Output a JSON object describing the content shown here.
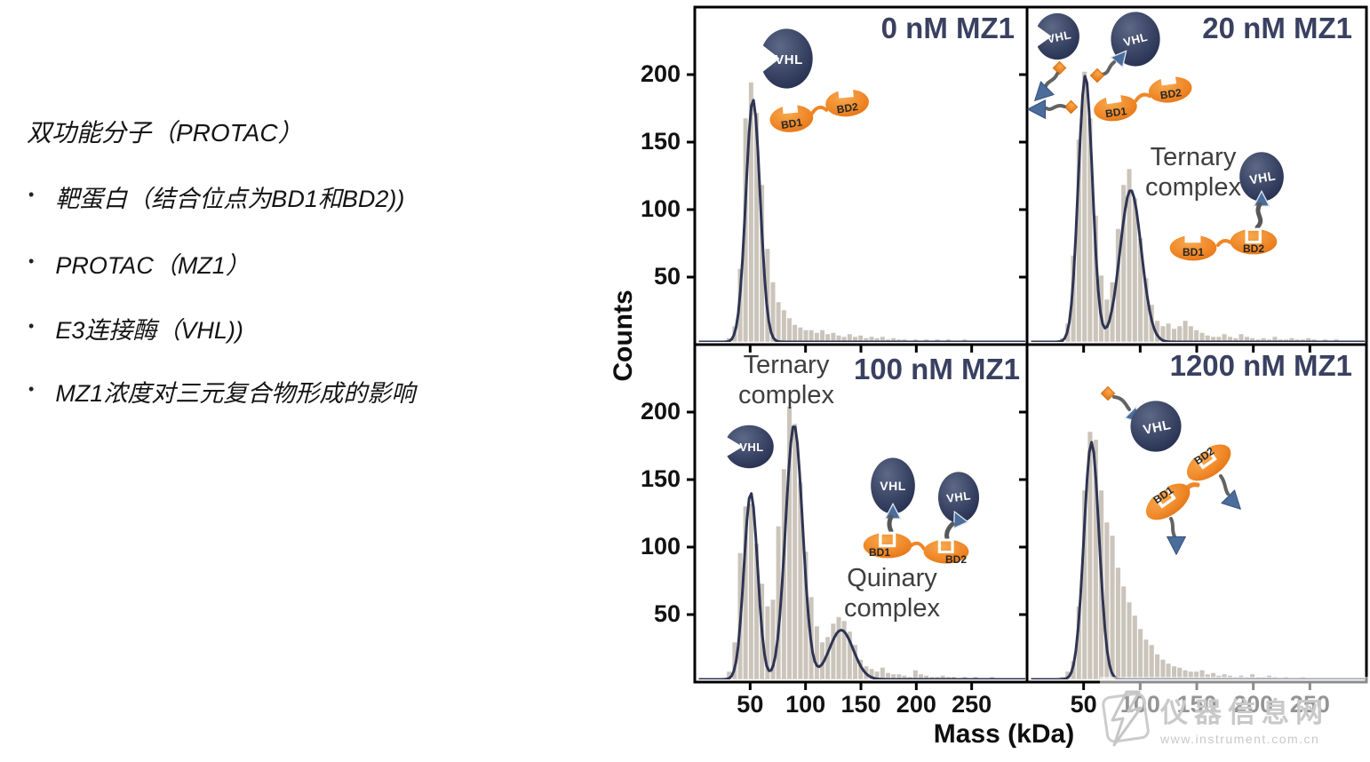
{
  "left_panel": {
    "title": "双功能分子（PROTAC）",
    "bullets": [
      "靶蛋白（结合位点为BD1和BD2))",
      "PROTAC（MZ1）",
      "E3连接酶（VHL))",
      "MZ1浓度对三元复合物形成的影响"
    ]
  },
  "icons": {
    "vhl": "VHL",
    "bd1": "BD1",
    "bd2": "BD2"
  },
  "watermark": {
    "line1": "仪器信息网",
    "line2": "www.instrument.com.cn"
  },
  "chart_data": {
    "type": "bar",
    "subtype": "mass-photometry-histograms",
    "layout": "2x2-shared-axes",
    "xlabel": "Mass (kDa)",
    "ylabel": "Counts",
    "xlim": [
      0,
      300
    ],
    "ylim": [
      0,
      250
    ],
    "xticks": [
      50,
      100,
      150,
      200,
      250
    ],
    "yticks": [
      50,
      100,
      150,
      200
    ],
    "bin_width": 5,
    "grid": false,
    "colors": {
      "bar": "#cac4bb",
      "fit": "#2e3452",
      "axis": "#000000",
      "title": "#3a4060"
    },
    "panels": [
      {
        "id": "0nm",
        "title": "0 nM MZ1",
        "bins": [
          [
            25,
            1
          ],
          [
            30,
            3
          ],
          [
            35,
            12
          ],
          [
            40,
            55
          ],
          [
            45,
            168
          ],
          [
            50,
            195
          ],
          [
            55,
            172
          ],
          [
            60,
            118
          ],
          [
            65,
            70
          ],
          [
            70,
            45
          ],
          [
            75,
            30
          ],
          [
            80,
            24
          ],
          [
            85,
            18
          ],
          [
            90,
            13
          ],
          [
            95,
            11
          ],
          [
            100,
            9
          ],
          [
            105,
            9
          ],
          [
            110,
            7
          ],
          [
            115,
            9
          ],
          [
            120,
            6
          ],
          [
            125,
            7
          ],
          [
            130,
            5
          ],
          [
            135,
            4
          ],
          [
            140,
            6
          ],
          [
            145,
            4
          ],
          [
            150,
            5
          ],
          [
            155,
            3
          ],
          [
            160,
            4
          ],
          [
            165,
            3
          ],
          [
            170,
            4
          ],
          [
            175,
            2
          ],
          [
            180,
            3
          ],
          [
            185,
            2
          ],
          [
            190,
            2
          ],
          [
            195,
            1
          ],
          [
            200,
            2
          ],
          [
            205,
            1
          ],
          [
            210,
            2
          ],
          [
            215,
            1
          ],
          [
            220,
            2
          ],
          [
            225,
            1
          ],
          [
            230,
            2
          ],
          [
            235,
            1
          ],
          [
            240,
            1
          ],
          [
            245,
            2
          ],
          [
            250,
            1
          ],
          [
            255,
            1
          ],
          [
            260,
            1
          ],
          [
            265,
            1
          ],
          [
            270,
            1
          ],
          [
            275,
            1
          ],
          [
            280,
            1
          ]
        ],
        "fit": [
          {
            "mu": 51.5,
            "sigma": 6.5,
            "amp": 182
          }
        ],
        "annotations": []
      },
      {
        "id": "20nm",
        "title": "20 nM MZ1",
        "bins": [
          [
            25,
            1
          ],
          [
            30,
            3
          ],
          [
            35,
            14
          ],
          [
            40,
            65
          ],
          [
            45,
            152
          ],
          [
            50,
            203
          ],
          [
            55,
            168
          ],
          [
            60,
            95
          ],
          [
            65,
            50
          ],
          [
            70,
            32
          ],
          [
            75,
            45
          ],
          [
            80,
            85
          ],
          [
            85,
            118
          ],
          [
            90,
            130
          ],
          [
            95,
            108
          ],
          [
            100,
            78
          ],
          [
            105,
            48
          ],
          [
            110,
            28
          ],
          [
            115,
            16
          ],
          [
            120,
            12
          ],
          [
            125,
            14
          ],
          [
            130,
            10
          ],
          [
            135,
            12
          ],
          [
            140,
            16
          ],
          [
            145,
            12
          ],
          [
            150,
            9
          ],
          [
            155,
            7
          ],
          [
            160,
            5
          ],
          [
            165,
            4
          ],
          [
            170,
            4
          ],
          [
            175,
            6
          ],
          [
            180,
            4
          ],
          [
            185,
            3
          ],
          [
            190,
            6
          ],
          [
            195,
            4
          ],
          [
            200,
            3
          ],
          [
            205,
            2
          ],
          [
            210,
            3
          ],
          [
            215,
            2
          ],
          [
            220,
            4
          ],
          [
            225,
            2
          ],
          [
            230,
            2
          ],
          [
            235,
            3
          ],
          [
            240,
            2
          ],
          [
            245,
            2
          ],
          [
            250,
            3
          ],
          [
            255,
            2
          ],
          [
            260,
            1
          ],
          [
            265,
            2
          ],
          [
            270,
            1
          ],
          [
            275,
            2
          ],
          [
            280,
            1
          ]
        ],
        "fit": [
          {
            "mu": 50.5,
            "sigma": 6.3,
            "amp": 200
          },
          {
            "mu": 91,
            "sigma": 9.5,
            "amp": 114
          }
        ],
        "annotations": [
          {
            "text": "Ternary complex"
          }
        ]
      },
      {
        "id": "100nm",
        "title": "100 nM MZ1",
        "bins": [
          [
            25,
            1
          ],
          [
            30,
            6
          ],
          [
            35,
            28
          ],
          [
            40,
            95
          ],
          [
            45,
            130
          ],
          [
            50,
            132
          ],
          [
            55,
            102
          ],
          [
            60,
            72
          ],
          [
            65,
            55
          ],
          [
            70,
            60
          ],
          [
            75,
            115
          ],
          [
            80,
            158
          ],
          [
            85,
            205
          ],
          [
            90,
            192
          ],
          [
            95,
            148
          ],
          [
            100,
            96
          ],
          [
            105,
            62
          ],
          [
            110,
            40
          ],
          [
            115,
            28
          ],
          [
            120,
            32
          ],
          [
            125,
            42
          ],
          [
            130,
            47
          ],
          [
            135,
            44
          ],
          [
            140,
            36
          ],
          [
            145,
            26
          ],
          [
            150,
            15
          ],
          [
            155,
            10
          ],
          [
            160,
            8
          ],
          [
            165,
            6
          ],
          [
            170,
            9
          ],
          [
            175,
            5
          ],
          [
            180,
            4
          ],
          [
            185,
            4
          ],
          [
            190,
            3
          ],
          [
            195,
            2
          ],
          [
            200,
            7
          ],
          [
            205,
            4
          ],
          [
            210,
            3
          ],
          [
            215,
            2
          ],
          [
            220,
            2
          ],
          [
            225,
            3
          ],
          [
            230,
            2
          ],
          [
            235,
            2
          ],
          [
            240,
            1
          ],
          [
            245,
            2
          ],
          [
            250,
            1
          ],
          [
            255,
            2
          ],
          [
            260,
            1
          ],
          [
            265,
            1
          ],
          [
            270,
            2
          ],
          [
            275,
            1
          ],
          [
            280,
            1
          ]
        ],
        "fit": [
          {
            "mu": 49.5,
            "sigma": 6.2,
            "amp": 140
          },
          {
            "mu": 89,
            "sigma": 7.8,
            "amp": 191
          },
          {
            "mu": 132,
            "sigma": 11,
            "amp": 37
          }
        ],
        "annotations": [
          {
            "text": "Ternary complex"
          },
          {
            "text": "Quinary complex"
          }
        ]
      },
      {
        "id": "1200nm",
        "title": "1200 nM MZ1",
        "bins": [
          [
            30,
            2
          ],
          [
            35,
            6
          ],
          [
            40,
            14
          ],
          [
            45,
            55
          ],
          [
            50,
            142
          ],
          [
            55,
            186
          ],
          [
            60,
            180
          ],
          [
            65,
            142
          ],
          [
            70,
            118
          ],
          [
            75,
            108
          ],
          [
            80,
            84
          ],
          [
            85,
            70
          ],
          [
            90,
            58
          ],
          [
            95,
            48
          ],
          [
            100,
            38
          ],
          [
            105,
            30
          ],
          [
            110,
            26
          ],
          [
            115,
            19
          ],
          [
            120,
            15
          ],
          [
            125,
            12
          ],
          [
            130,
            10
          ],
          [
            135,
            9
          ],
          [
            140,
            7
          ],
          [
            145,
            6
          ],
          [
            150,
            6
          ],
          [
            155,
            7
          ],
          [
            160,
            4
          ],
          [
            165,
            5
          ],
          [
            170,
            3
          ],
          [
            175,
            4
          ],
          [
            180,
            3
          ],
          [
            185,
            2
          ],
          [
            190,
            3
          ],
          [
            195,
            2
          ],
          [
            200,
            4
          ],
          [
            205,
            2
          ],
          [
            210,
            2
          ],
          [
            215,
            3
          ],
          [
            220,
            2
          ],
          [
            225,
            1
          ],
          [
            230,
            2
          ],
          [
            235,
            1
          ],
          [
            240,
            1
          ],
          [
            245,
            2
          ],
          [
            250,
            1
          ],
          [
            255,
            1
          ],
          [
            260,
            1
          ],
          [
            265,
            1
          ],
          [
            270,
            1
          ],
          [
            275,
            1
          ],
          [
            280,
            1
          ]
        ],
        "fit": [
          {
            "mu": 56,
            "sigma": 6.8,
            "amp": 178
          }
        ],
        "annotations": []
      }
    ]
  }
}
